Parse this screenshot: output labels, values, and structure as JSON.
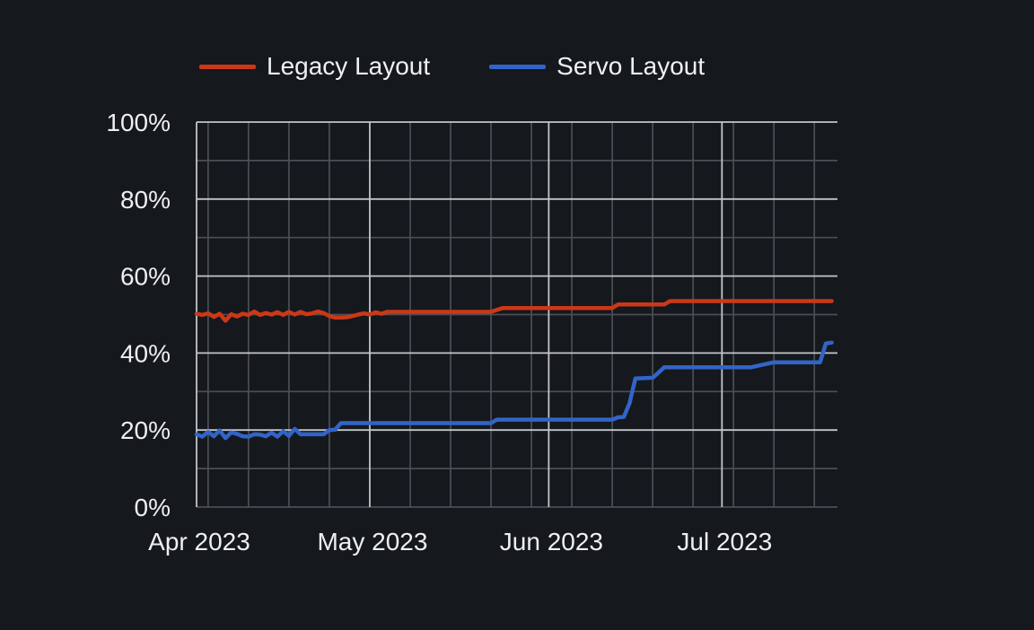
{
  "chart_data": {
    "type": "line",
    "title": "",
    "background_color": "#15181c",
    "text_color": "#edeff1",
    "grid": {
      "on": true,
      "major_color": "#c2c5ca",
      "minor_color": "#4b4f55"
    },
    "legend": {
      "position": "top",
      "entries": [
        "Legacy Layout",
        "Servo Layout"
      ]
    },
    "x_axis": {
      "label": "",
      "unit": "days since 2023-04-01",
      "domain_days": [
        0,
        111
      ],
      "tick_labels": [
        "Apr 2023",
        "May 2023",
        "Jun 2023",
        "Jul 2023"
      ],
      "tick_day_offsets": [
        0,
        30,
        61,
        91
      ],
      "minor_gridline_day_offsets": [
        2,
        9,
        16,
        23,
        37,
        44,
        51,
        58,
        65,
        72,
        79,
        86,
        93,
        100,
        107
      ]
    },
    "y_axis": {
      "label": "",
      "unit": "%",
      "range": [
        0,
        100
      ],
      "tick_labels": [
        "0%",
        "20%",
        "40%",
        "60%",
        "80%",
        "100%"
      ],
      "tick_values": [
        0,
        20,
        40,
        60,
        80,
        100
      ],
      "major_gridline_values": [
        20,
        40,
        60,
        80,
        100
      ],
      "minor_gridline_values": [
        0,
        10,
        30,
        50,
        70,
        90
      ]
    },
    "series": [
      {
        "name": "Legacy Layout",
        "color": "#cc3817",
        "points": [
          [
            0,
            50.2
          ],
          [
            1,
            49.9
          ],
          [
            2,
            50.3
          ],
          [
            3,
            49.4
          ],
          [
            4,
            50.2
          ],
          [
            5,
            48.4
          ],
          [
            6,
            50.1
          ],
          [
            7,
            49.5
          ],
          [
            8,
            50.2
          ],
          [
            9,
            49.9
          ],
          [
            10,
            50.8
          ],
          [
            11,
            49.9
          ],
          [
            12,
            50.4
          ],
          [
            13,
            50.0
          ],
          [
            14,
            50.6
          ],
          [
            15,
            49.9
          ],
          [
            16,
            50.7
          ],
          [
            17,
            50.0
          ],
          [
            18,
            50.7
          ],
          [
            19,
            50.1
          ],
          [
            20,
            50.3
          ],
          [
            21,
            50.8
          ],
          [
            22,
            50.4
          ],
          [
            23,
            49.6
          ],
          [
            24,
            49.2
          ],
          [
            25,
            49.2
          ],
          [
            26,
            49.3
          ],
          [
            27,
            49.6
          ],
          [
            28,
            50.0
          ],
          [
            29,
            50.3
          ],
          [
            30,
            50.0
          ],
          [
            31,
            50.6
          ],
          [
            32,
            50.2
          ],
          [
            33,
            50.7
          ],
          [
            51,
            50.7
          ],
          [
            53,
            51.7
          ],
          [
            72,
            51.7
          ],
          [
            73,
            52.6
          ],
          [
            81,
            52.6
          ],
          [
            82,
            53.5
          ],
          [
            110,
            53.5
          ]
        ]
      },
      {
        "name": "Servo Layout",
        "color": "#3264c8",
        "points": [
          [
            0,
            18.9
          ],
          [
            1,
            18.3
          ],
          [
            2,
            19.5
          ],
          [
            3,
            18.4
          ],
          [
            4,
            19.9
          ],
          [
            5,
            17.9
          ],
          [
            6,
            19.4
          ],
          [
            7,
            19.0
          ],
          [
            8,
            18.4
          ],
          [
            9,
            18.3
          ],
          [
            10,
            18.9
          ],
          [
            11,
            18.8
          ],
          [
            12,
            18.4
          ],
          [
            13,
            19.3
          ],
          [
            14,
            18.3
          ],
          [
            15,
            19.7
          ],
          [
            16,
            18.5
          ],
          [
            17,
            20.3
          ],
          [
            18,
            18.9
          ],
          [
            20,
            18.9
          ],
          [
            22,
            18.9
          ],
          [
            23,
            20.0
          ],
          [
            24,
            20.1
          ],
          [
            25,
            21.8
          ],
          [
            51,
            21.8
          ],
          [
            52,
            22.7
          ],
          [
            72,
            22.7
          ],
          [
            73,
            23.3
          ],
          [
            74,
            23.4
          ],
          [
            75,
            27.0
          ],
          [
            76,
            33.4
          ],
          [
            79,
            33.6
          ],
          [
            80,
            34.9
          ],
          [
            81,
            36.3
          ],
          [
            96,
            36.3
          ],
          [
            100,
            37.6
          ],
          [
            108,
            37.6
          ],
          [
            109,
            42.5
          ],
          [
            110,
            42.7
          ]
        ]
      }
    ]
  }
}
